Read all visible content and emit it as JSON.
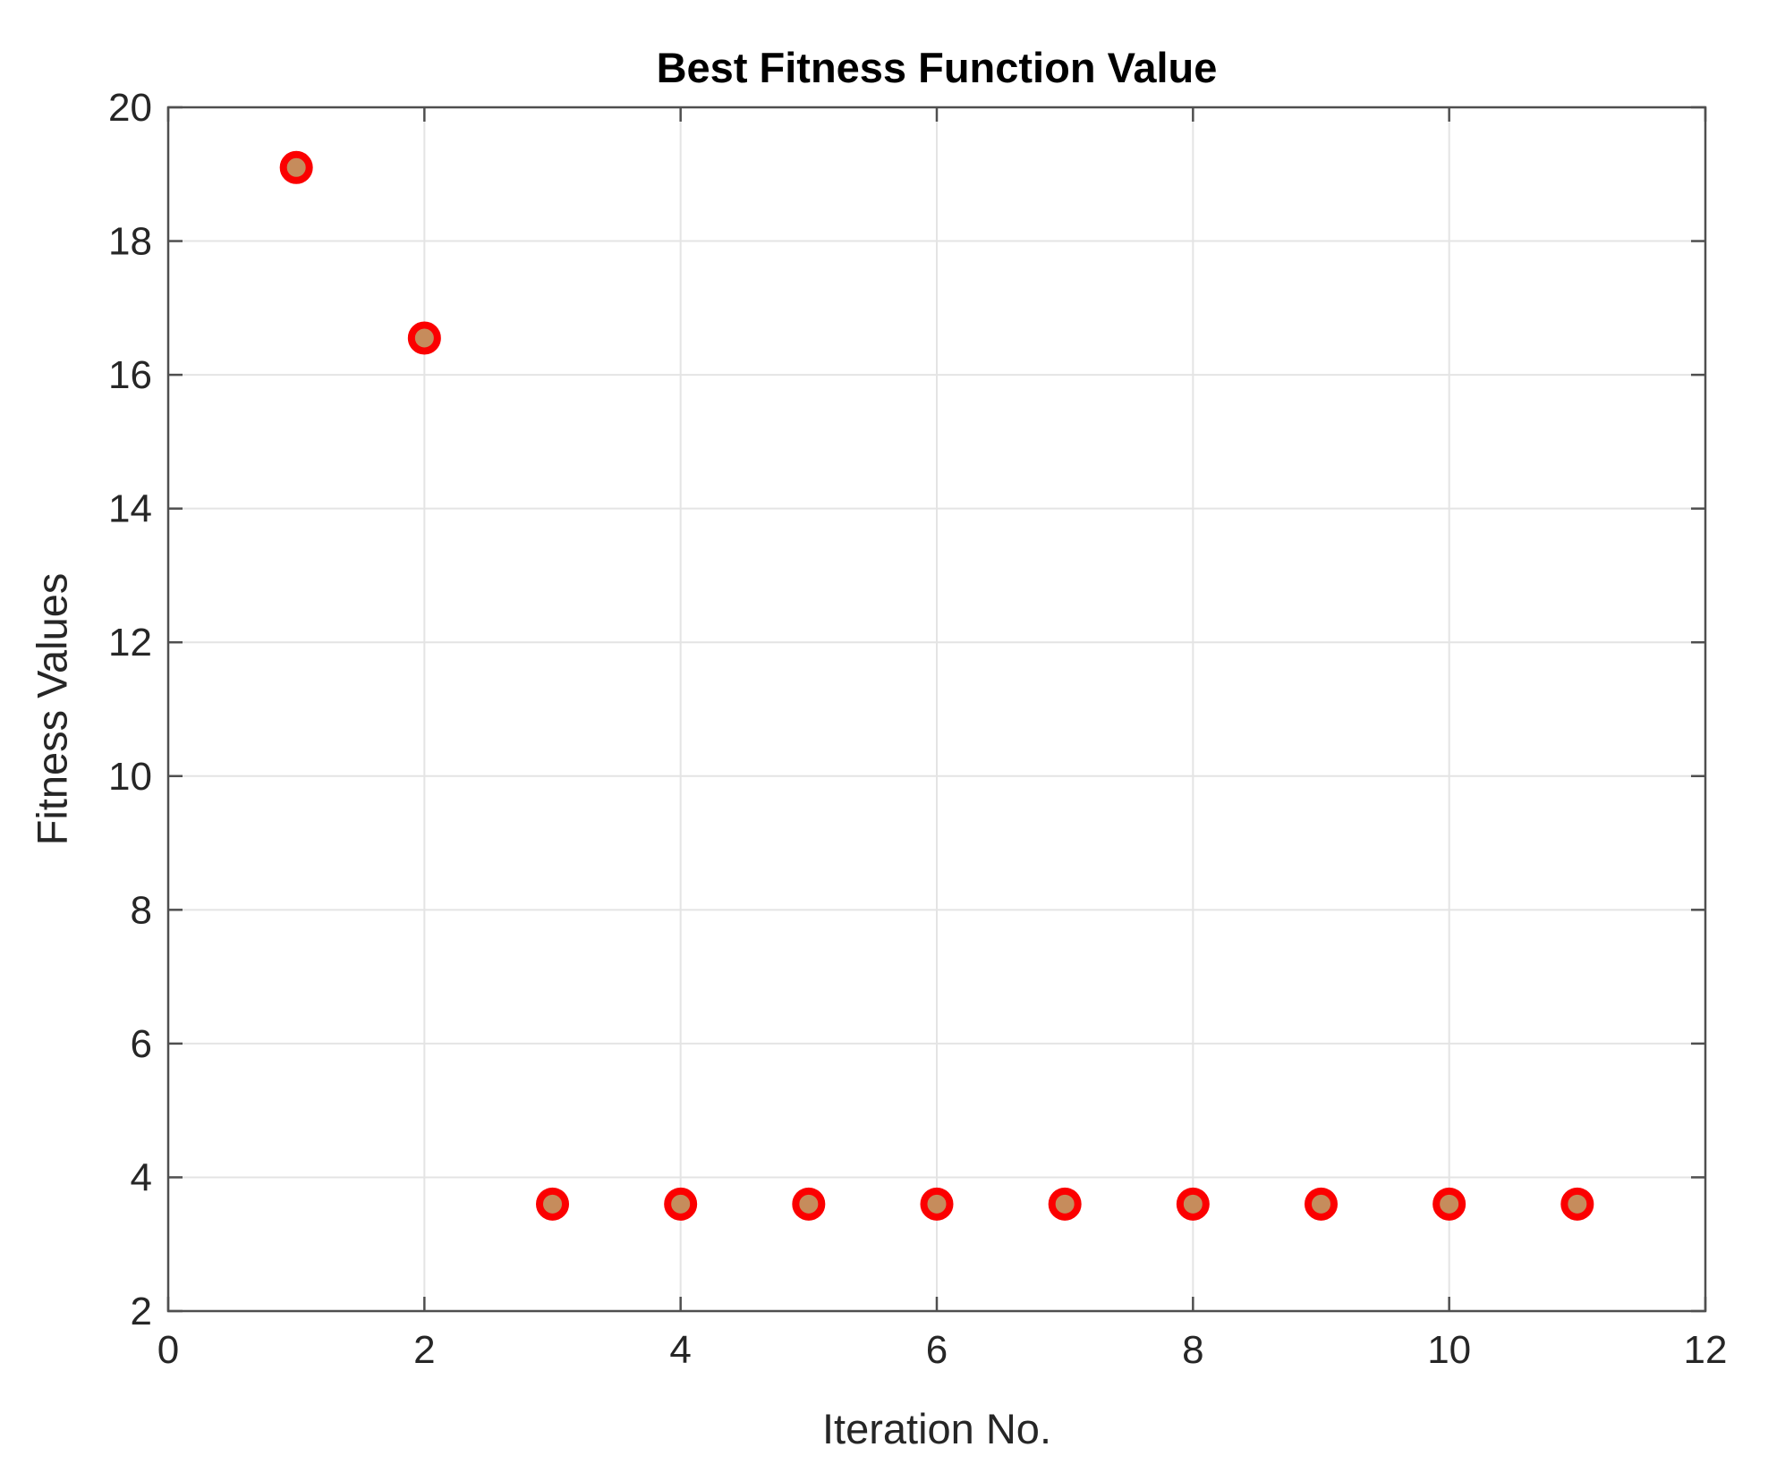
{
  "figure": {
    "background_color": "#ffffff"
  },
  "chart_data": {
    "type": "scatter",
    "title": "Best Fitness Function Value",
    "xlabel": "Iteration No.",
    "ylabel": "Fitness Values",
    "x": [
      1,
      2,
      3,
      4,
      5,
      6,
      7,
      8,
      9,
      10,
      11
    ],
    "y": [
      19.1,
      16.55,
      3.6,
      3.6,
      3.6,
      3.6,
      3.6,
      3.6,
      3.6,
      3.6,
      3.6
    ],
    "xlim": [
      0,
      12
    ],
    "ylim": [
      2,
      20
    ],
    "xticks": [
      0,
      2,
      4,
      6,
      8,
      10,
      12
    ],
    "yticks": [
      2,
      4,
      6,
      8,
      10,
      12,
      14,
      16,
      18,
      20
    ],
    "grid": true,
    "legend": "none",
    "marker": {
      "shape": "circle",
      "face_color": "#C68C5C",
      "edge_color": "#FB0000"
    },
    "colors": {
      "grid_line": "#E4E4E4",
      "axis_frame": "#4F4F4F",
      "tick_label": "#262626",
      "title": "#000000"
    }
  }
}
